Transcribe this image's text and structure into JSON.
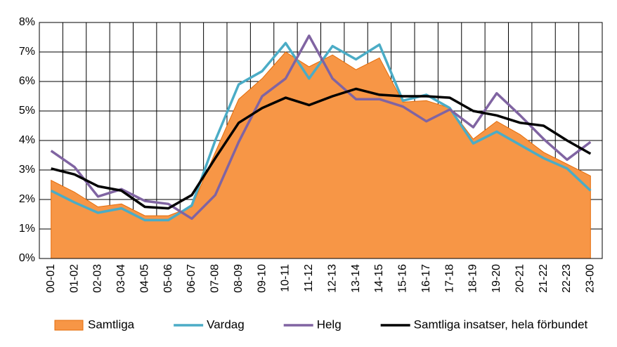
{
  "chart_data": {
    "type": "line",
    "categories": [
      "00-01",
      "01-02",
      "02-03",
      "03-04",
      "04-05",
      "05-06",
      "06-07",
      "07-08",
      "08-09",
      "09-10",
      "10-11",
      "11-12",
      "12-13",
      "13-14",
      "14-15",
      "15-16",
      "16-17",
      "17-18",
      "18-19",
      "19-20",
      "20-21",
      "21-22",
      "22-23",
      "23-00"
    ],
    "series": [
      {
        "name": "Samtliga",
        "type": "area",
        "color": "#F79646",
        "values": [
          2.65,
          2.25,
          1.75,
          1.85,
          1.45,
          1.45,
          1.75,
          3.6,
          5.4,
          6.1,
          7.0,
          6.5,
          6.9,
          6.4,
          6.8,
          5.3,
          5.35,
          5.1,
          4.05,
          4.65,
          4.2,
          3.6,
          3.2,
          2.8
        ]
      },
      {
        "name": "Vardag",
        "type": "line",
        "color": "#4BACC6",
        "values": [
          2.3,
          1.9,
          1.55,
          1.7,
          1.3,
          1.3,
          1.8,
          4.0,
          5.9,
          6.35,
          7.3,
          6.1,
          7.2,
          6.75,
          7.25,
          5.35,
          5.55,
          5.1,
          3.9,
          4.3,
          3.85,
          3.4,
          3.05,
          2.3
        ]
      },
      {
        "name": "Helg",
        "type": "line",
        "color": "#8064A2",
        "values": [
          3.65,
          3.1,
          2.1,
          2.35,
          1.95,
          1.85,
          1.35,
          2.15,
          3.95,
          5.5,
          6.1,
          7.55,
          6.1,
          5.4,
          5.4,
          5.15,
          4.65,
          5.05,
          4.45,
          5.6,
          4.85,
          4.05,
          3.35,
          3.95
        ]
      },
      {
        "name": "Samtliga insatser, hela förbundet",
        "type": "line",
        "color": "#000000",
        "values": [
          3.05,
          2.85,
          2.45,
          2.3,
          1.75,
          1.7,
          2.15,
          3.4,
          4.6,
          5.1,
          5.45,
          5.2,
          5.5,
          5.75,
          5.55,
          5.5,
          5.5,
          5.45,
          5.0,
          4.85,
          4.6,
          4.5,
          4.0,
          3.55
        ]
      }
    ],
    "ylim": [
      0,
      8
    ],
    "yticks": [
      {
        "value": 0,
        "label": "0%"
      },
      {
        "value": 1,
        "label": "1%"
      },
      {
        "value": 2,
        "label": "2%"
      },
      {
        "value": 3,
        "label": "3%"
      },
      {
        "value": 4,
        "label": "4%"
      },
      {
        "value": 5,
        "label": "5%"
      },
      {
        "value": 6,
        "label": "6%"
      },
      {
        "value": 7,
        "label": "7%"
      },
      {
        "value": 8,
        "label": "8%"
      }
    ],
    "grid": true,
    "legend": "bottom"
  }
}
